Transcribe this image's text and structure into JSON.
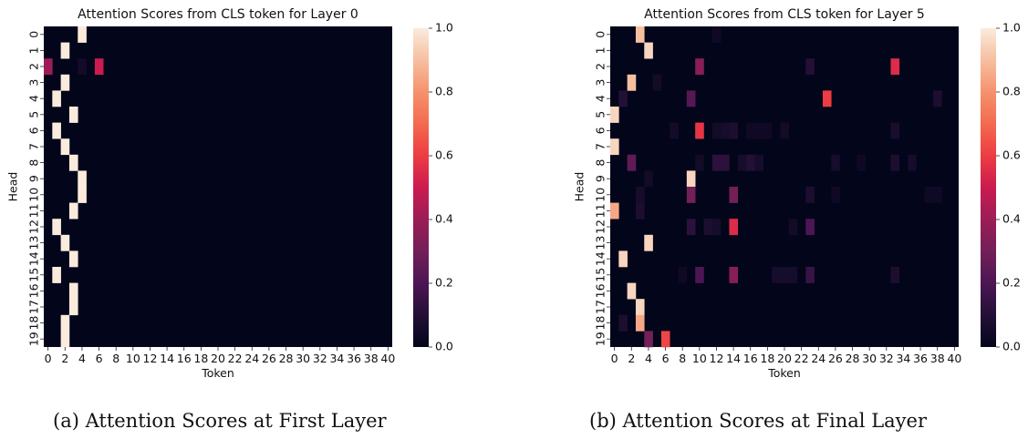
{
  "panels": [
    {
      "caption": "(a) Attention Scores at First Layer",
      "chart_data": {
        "type": "heatmap",
        "title": "Attention Scores from CLS token for Layer 0",
        "xlabel": "Token",
        "ylabel": "Head",
        "x_ticks": [
          "0",
          "2",
          "4",
          "6",
          "8",
          "10",
          "12",
          "14",
          "16",
          "18",
          "20",
          "22",
          "24",
          "26",
          "28",
          "30",
          "32",
          "34",
          "36",
          "38",
          "40"
        ],
        "y_ticks": [
          "0",
          "1",
          "2",
          "3",
          "4",
          "5",
          "6",
          "7",
          "8",
          "9",
          "10",
          "11",
          "12",
          "13",
          "14",
          "15",
          "16",
          "17",
          "18",
          "19"
        ],
        "n_tokens": 41,
        "n_heads": 20,
        "colorbar": {
          "min": 0.0,
          "max": 1.0,
          "ticks": [
            "0.0",
            "0.2",
            "0.4",
            "0.6",
            "0.8",
            "1.0"
          ],
          "colormap": "rocket"
        },
        "cells": [
          {
            "head": 0,
            "token": 4,
            "value": 1.0
          },
          {
            "head": 1,
            "token": 2,
            "value": 1.0
          },
          {
            "head": 2,
            "token": 0,
            "value": 0.4
          },
          {
            "head": 2,
            "token": 4,
            "value": 0.05
          },
          {
            "head": 2,
            "token": 6,
            "value": 0.5
          },
          {
            "head": 3,
            "token": 2,
            "value": 1.0
          },
          {
            "head": 4,
            "token": 1,
            "value": 1.0
          },
          {
            "head": 5,
            "token": 3,
            "value": 1.0
          },
          {
            "head": 6,
            "token": 1,
            "value": 1.0
          },
          {
            "head": 7,
            "token": 2,
            "value": 1.0
          },
          {
            "head": 8,
            "token": 3,
            "value": 1.0
          },
          {
            "head": 9,
            "token": 4,
            "value": 1.0
          },
          {
            "head": 10,
            "token": 4,
            "value": 1.0
          },
          {
            "head": 11,
            "token": 3,
            "value": 1.0
          },
          {
            "head": 12,
            "token": 1,
            "value": 1.0
          },
          {
            "head": 13,
            "token": 2,
            "value": 1.0
          },
          {
            "head": 14,
            "token": 3,
            "value": 1.0
          },
          {
            "head": 15,
            "token": 1,
            "value": 1.0
          },
          {
            "head": 16,
            "token": 3,
            "value": 1.0
          },
          {
            "head": 17,
            "token": 3,
            "value": 1.0
          },
          {
            "head": 18,
            "token": 2,
            "value": 1.0
          },
          {
            "head": 19,
            "token": 2,
            "value": 1.0
          }
        ]
      }
    },
    {
      "caption": "(b) Attention Scores at Final Layer",
      "chart_data": {
        "type": "heatmap",
        "title": "Attention Scores from CLS token for Layer 5",
        "xlabel": "Token",
        "ylabel": "Head",
        "x_ticks": [
          "0",
          "2",
          "4",
          "6",
          "8",
          "10",
          "12",
          "14",
          "16",
          "18",
          "20",
          "22",
          "24",
          "26",
          "28",
          "30",
          "32",
          "34",
          "36",
          "38",
          "40"
        ],
        "y_ticks": [
          "0",
          "1",
          "2",
          "3",
          "4",
          "5",
          "6",
          "7",
          "8",
          "9",
          "10",
          "11",
          "12",
          "13",
          "14",
          "15",
          "16",
          "17",
          "18",
          "19"
        ],
        "n_tokens": 41,
        "n_heads": 20,
        "colorbar": {
          "min": 0.0,
          "max": 1.0,
          "ticks": [
            "0.0",
            "0.2",
            "0.4",
            "0.6",
            "0.8",
            "1.0"
          ],
          "colormap": "rocket"
        },
        "cells": [
          {
            "head": 0,
            "token": 3,
            "value": 0.9
          },
          {
            "head": 0,
            "token": 12,
            "value": 0.04
          },
          {
            "head": 1,
            "token": 4,
            "value": 0.95
          },
          {
            "head": 2,
            "token": 10,
            "value": 0.35
          },
          {
            "head": 2,
            "token": 23,
            "value": 0.1
          },
          {
            "head": 2,
            "token": 33,
            "value": 0.55
          },
          {
            "head": 3,
            "token": 2,
            "value": 0.9
          },
          {
            "head": 3,
            "token": 5,
            "value": 0.05
          },
          {
            "head": 4,
            "token": 1,
            "value": 0.1
          },
          {
            "head": 4,
            "token": 9,
            "value": 0.22
          },
          {
            "head": 4,
            "token": 25,
            "value": 0.6
          },
          {
            "head": 4,
            "token": 38,
            "value": 0.08
          },
          {
            "head": 5,
            "token": 0,
            "value": 0.95
          },
          {
            "head": 6,
            "token": 7,
            "value": 0.05
          },
          {
            "head": 6,
            "token": 10,
            "value": 0.58
          },
          {
            "head": 6,
            "token": 12,
            "value": 0.05
          },
          {
            "head": 6,
            "token": 13,
            "value": 0.06
          },
          {
            "head": 6,
            "token": 14,
            "value": 0.08
          },
          {
            "head": 6,
            "token": 16,
            "value": 0.04
          },
          {
            "head": 6,
            "token": 17,
            "value": 0.04
          },
          {
            "head": 6,
            "token": 18,
            "value": 0.04
          },
          {
            "head": 6,
            "token": 20,
            "value": 0.05
          },
          {
            "head": 6,
            "token": 33,
            "value": 0.07
          },
          {
            "head": 7,
            "token": 0,
            "value": 0.95
          },
          {
            "head": 8,
            "token": 2,
            "value": 0.25
          },
          {
            "head": 8,
            "token": 10,
            "value": 0.05
          },
          {
            "head": 8,
            "token": 12,
            "value": 0.12
          },
          {
            "head": 8,
            "token": 13,
            "value": 0.12
          },
          {
            "head": 8,
            "token": 15,
            "value": 0.06
          },
          {
            "head": 8,
            "token": 16,
            "value": 0.1
          },
          {
            "head": 8,
            "token": 17,
            "value": 0.06
          },
          {
            "head": 8,
            "token": 26,
            "value": 0.06
          },
          {
            "head": 8,
            "token": 29,
            "value": 0.04
          },
          {
            "head": 8,
            "token": 33,
            "value": 0.08
          },
          {
            "head": 8,
            "token": 35,
            "value": 0.06
          },
          {
            "head": 9,
            "token": 4,
            "value": 0.05
          },
          {
            "head": 9,
            "token": 9,
            "value": 0.95
          },
          {
            "head": 10,
            "token": 3,
            "value": 0.06
          },
          {
            "head": 10,
            "token": 9,
            "value": 0.3
          },
          {
            "head": 10,
            "token": 14,
            "value": 0.3
          },
          {
            "head": 10,
            "token": 23,
            "value": 0.08
          },
          {
            "head": 10,
            "token": 26,
            "value": 0.04
          },
          {
            "head": 10,
            "token": 37,
            "value": 0.04
          },
          {
            "head": 10,
            "token": 38,
            "value": 0.04
          },
          {
            "head": 11,
            "token": 0,
            "value": 0.85
          },
          {
            "head": 11,
            "token": 3,
            "value": 0.08
          },
          {
            "head": 12,
            "token": 9,
            "value": 0.12
          },
          {
            "head": 12,
            "token": 11,
            "value": 0.08
          },
          {
            "head": 12,
            "token": 12,
            "value": 0.06
          },
          {
            "head": 12,
            "token": 14,
            "value": 0.55
          },
          {
            "head": 12,
            "token": 21,
            "value": 0.05
          },
          {
            "head": 12,
            "token": 23,
            "value": 0.2
          },
          {
            "head": 13,
            "token": 4,
            "value": 0.95
          },
          {
            "head": 14,
            "token": 1,
            "value": 0.95
          },
          {
            "head": 15,
            "token": 8,
            "value": 0.04
          },
          {
            "head": 15,
            "token": 10,
            "value": 0.2
          },
          {
            "head": 15,
            "token": 14,
            "value": 0.35
          },
          {
            "head": 15,
            "token": 19,
            "value": 0.06
          },
          {
            "head": 15,
            "token": 20,
            "value": 0.06
          },
          {
            "head": 15,
            "token": 21,
            "value": 0.06
          },
          {
            "head": 15,
            "token": 23,
            "value": 0.15
          },
          {
            "head": 15,
            "token": 33,
            "value": 0.08
          },
          {
            "head": 16,
            "token": 2,
            "value": 0.95
          },
          {
            "head": 17,
            "token": 3,
            "value": 0.95
          },
          {
            "head": 18,
            "token": 1,
            "value": 0.08
          },
          {
            "head": 18,
            "token": 3,
            "value": 0.85
          },
          {
            "head": 19,
            "token": 4,
            "value": 0.3
          },
          {
            "head": 19,
            "token": 6,
            "value": 0.62
          }
        ]
      }
    }
  ]
}
